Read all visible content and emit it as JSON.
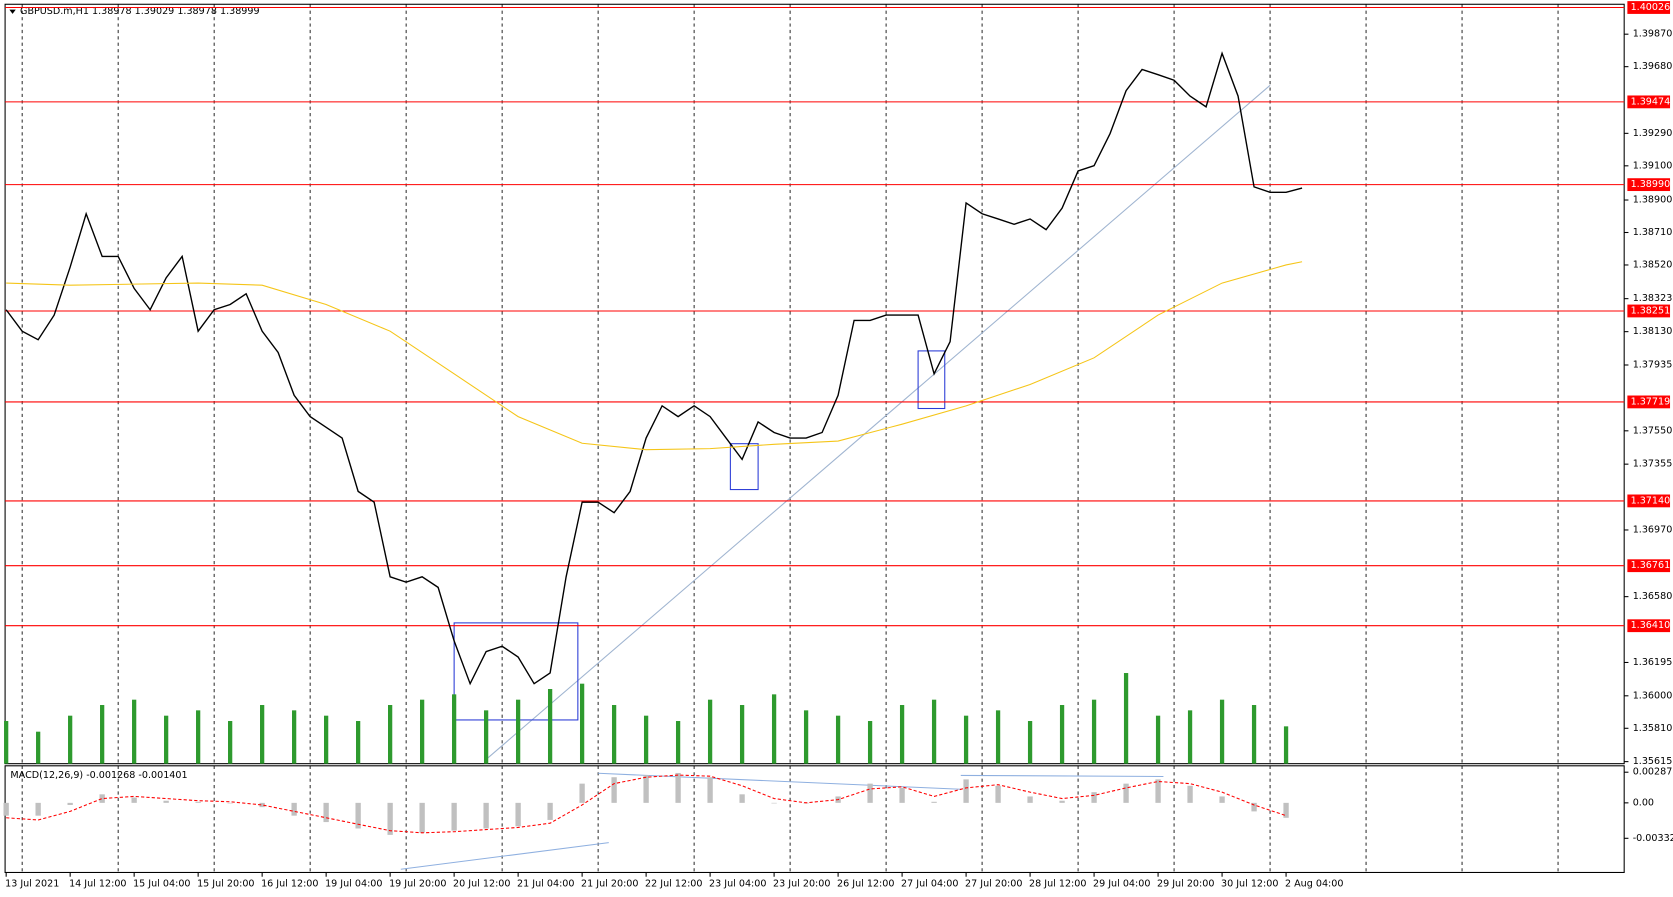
{
  "chart_data": {
    "type": "line",
    "title": "GBPUSD.m,H1  1.38978 1.39029 1.38978 1.38999",
    "xlim": [
      0,
      404
    ],
    "xticks": [
      {
        "value": 0,
        "label": "13 Jul 2021"
      },
      {
        "value": 16,
        "label": "14 Jul 12:00"
      },
      {
        "value": 32,
        "label": "15 Jul 04:00"
      },
      {
        "value": 48,
        "label": "15 Jul 20:00"
      },
      {
        "value": 64,
        "label": "16 Jul 12:00"
      },
      {
        "value": 80,
        "label": "19 Jul 04:00"
      },
      {
        "value": 96,
        "label": "19 Jul 20:00"
      },
      {
        "value": 112,
        "label": "20 Jul 12:00"
      },
      {
        "value": 128,
        "label": "21 Jul 04:00"
      },
      {
        "value": 144,
        "label": "21 Jul 20:00"
      },
      {
        "value": 160,
        "label": "22 Jul 12:00"
      },
      {
        "value": 176,
        "label": "23 Jul 04:00"
      },
      {
        "value": 192,
        "label": "23 Jul 20:00"
      },
      {
        "value": 208,
        "label": "26 Jul 12:00"
      },
      {
        "value": 224,
        "label": "27 Jul 04:00"
      },
      {
        "value": 240,
        "label": "27 Jul 20:00"
      },
      {
        "value": 256,
        "label": "28 Jul 12:00"
      },
      {
        "value": 272,
        "label": "29 Jul 04:00"
      },
      {
        "value": 288,
        "label": "29 Jul 20:00"
      },
      {
        "value": 304,
        "label": "30 Jul 12:00"
      },
      {
        "value": 320,
        "label": "2 Aug 04:00"
      }
    ],
    "ylim": [
      1.35603,
      1.40045
    ],
    "yticks": [
      {
        "value": 1.3987,
        "label": "1.39870"
      },
      {
        "value": 1.3968,
        "label": "1.39680"
      },
      {
        "value": 1.3929,
        "label": "1.39290"
      },
      {
        "value": 1.391,
        "label": "1.39100"
      },
      {
        "value": 1.389,
        "label": "1.38900"
      },
      {
        "value": 1.3871,
        "label": "1.38710"
      },
      {
        "value": 1.3852,
        "label": "1.38520"
      },
      {
        "value": 1.38323,
        "label": "1.38323"
      },
      {
        "value": 1.3813,
        "label": "1.38130"
      },
      {
        "value": 1.37935,
        "label": "1.37935"
      },
      {
        "value": 1.3755,
        "label": "1.37550"
      },
      {
        "value": 1.37355,
        "label": "1.37355"
      },
      {
        "value": 1.3697,
        "label": "1.36970"
      },
      {
        "value": 1.3658,
        "label": "1.36580"
      },
      {
        "value": 1.36195,
        "label": "1.36195"
      },
      {
        "value": 1.36,
        "label": "1.36000"
      },
      {
        "value": 1.3581,
        "label": "1.35810"
      },
      {
        "value": 1.35615,
        "label": "1.35615"
      }
    ],
    "series": [
      {
        "color": "#000000",
        "x": [
          0,
          4,
          8,
          12,
          16,
          20,
          24,
          28,
          32,
          36,
          40,
          44,
          48,
          52,
          56,
          60,
          64,
          68,
          72,
          76,
          80,
          84,
          88,
          92,
          96,
          100,
          104,
          108,
          112,
          116,
          120,
          124,
          128,
          132,
          136,
          140,
          144,
          148,
          152,
          156,
          160,
          164,
          168,
          172,
          176,
          180,
          184,
          188,
          192,
          196,
          200,
          204,
          208,
          212,
          216,
          220,
          224,
          228,
          232,
          236,
          240,
          244,
          248,
          252,
          256,
          260,
          264,
          268,
          272,
          276,
          280,
          284,
          288,
          292,
          296,
          300,
          304,
          308,
          312,
          316,
          320,
          324
        ],
        "values": [
          1.38258,
          1.38133,
          1.38083,
          1.38227,
          1.38508,
          1.3882,
          1.3857,
          1.3857,
          1.38383,
          1.38258,
          1.38445,
          1.3857,
          1.38133,
          1.38258,
          1.38289,
          1.38352,
          1.38133,
          1.38008,
          1.37758,
          1.37633,
          1.37571,
          1.37508,
          1.37196,
          1.37133,
          1.36696,
          1.36665,
          1.36696,
          1.36634,
          1.36321,
          1.36071,
          1.36259,
          1.3629,
          1.36227,
          1.36071,
          1.36134,
          1.36696,
          1.37133,
          1.37133,
          1.37071,
          1.37196,
          1.37508,
          1.37696,
          1.37633,
          1.37696,
          1.37633,
          1.37508,
          1.37383,
          1.37602,
          1.3754,
          1.37508,
          1.37508,
          1.3754,
          1.37758,
          1.38196,
          1.38196,
          1.38227,
          1.38227,
          1.38227,
          1.37883,
          1.38071,
          1.38883,
          1.3882,
          1.38789,
          1.38758,
          1.38789,
          1.38727,
          1.38852,
          1.3907,
          1.39101,
          1.39289,
          1.39539,
          1.39664,
          1.39633,
          1.39601,
          1.39508,
          1.39445,
          1.39758,
          1.39508,
          1.38977,
          1.38945,
          1.38945,
          1.3897
        ]
      },
      {
        "color": "#f5c518",
        "x": [
          0,
          16,
          32,
          48,
          64,
          80,
          96,
          112,
          128,
          144,
          160,
          176,
          192,
          208,
          224,
          240,
          256,
          272,
          288,
          304,
          320,
          324
        ],
        "values": [
          1.38414,
          1.38402,
          1.38408,
          1.38414,
          1.38402,
          1.38289,
          1.38133,
          1.37883,
          1.37633,
          1.37477,
          1.3744,
          1.37446,
          1.37471,
          1.3749,
          1.37589,
          1.37696,
          1.37821,
          1.37977,
          1.38227,
          1.38414,
          1.3852,
          1.38539
        ]
      }
    ],
    "levels": {
      "color": "#ff0000",
      "values": [
        {
          "value": 1.40026,
          "label": "1.40026"
        },
        {
          "value": 1.39474,
          "label": "1.39474"
        },
        {
          "value": 1.3899,
          "label": "1.38990"
        },
        {
          "value": 1.38251,
          "label": "1.38251"
        },
        {
          "value": 1.37719,
          "label": "1.37719"
        },
        {
          "value": 1.3714,
          "label": "1.37140"
        },
        {
          "value": 1.36761,
          "label": "1.36761"
        },
        {
          "value": 1.3641,
          "label": "1.36410"
        }
      ]
    },
    "volume": {
      "color": "#2e9a2e",
      "x": [
        0,
        8,
        16,
        24,
        32,
        40,
        48,
        56,
        64,
        72,
        80,
        88,
        96,
        104,
        112,
        120,
        128,
        136,
        144,
        152,
        160,
        168,
        176,
        184,
        192,
        200,
        208,
        216,
        224,
        232,
        240,
        248,
        256,
        264,
        272,
        280,
        288,
        296,
        304,
        312,
        320
      ],
      "values": [
        40,
        30,
        45,
        55,
        60,
        45,
        50,
        40,
        55,
        50,
        45,
        40,
        55,
        60,
        65,
        50,
        60,
        70,
        75,
        55,
        45,
        40,
        60,
        55,
        65,
        50,
        45,
        40,
        55,
        60,
        45,
        50,
        40,
        55,
        60,
        85,
        45,
        50,
        60,
        55,
        35
      ]
    },
    "macd": {
      "title": "MACD(12,26,9) -0.001268 -0.001401",
      "ylim": [
        -0.00652,
        0.00347
      ],
      "yticks": [
        0.002871,
        {
          "value": 0,
          "label": "0.00"
        },
        -0.00332
      ],
      "x": [
        0,
        8,
        16,
        24,
        32,
        40,
        48,
        56,
        64,
        72,
        80,
        88,
        96,
        104,
        112,
        120,
        128,
        136,
        144,
        152,
        160,
        168,
        176,
        184,
        192,
        200,
        208,
        216,
        224,
        232,
        240,
        248,
        256,
        264,
        272,
        280,
        288,
        296,
        304,
        312,
        320
      ],
      "histogram": {
        "color": "#c0c0c0",
        "values": [
          -0.0012,
          -0.0012,
          -0.0002,
          0.0008,
          0.0005,
          0.0002,
          0.0001,
          0,
          -0.0004,
          -0.0012,
          -0.0018,
          -0.0024,
          -0.003,
          -0.0028,
          -0.0026,
          -0.0024,
          -0.0022,
          -0.0016,
          0.0018,
          0.0024,
          0.0026,
          0.0028,
          0.0024,
          0.0008,
          0,
          0,
          0.0006,
          0.0018,
          0.0014,
          0.0001,
          0.0022,
          0.0016,
          0.0006,
          0.0002,
          0.001,
          0.0018,
          0.0022,
          0.0016,
          0.0006,
          -0.0008,
          -0.0014
        ]
      },
      "signal": {
        "color": "#ff0000",
        "values": [
          -0.0014,
          -0.0016,
          -0.0008,
          0.0004,
          0.0006,
          0.0004,
          0.0002,
          0.0001,
          -0.0002,
          -0.0008,
          -0.0014,
          -0.002,
          -0.0026,
          -0.0028,
          -0.0027,
          -0.0025,
          -0.0023,
          -0.0019,
          -0.0002,
          0.0018,
          0.0024,
          0.0026,
          0.0025,
          0.0016,
          0.0004,
          0,
          0.0003,
          0.0013,
          0.0015,
          0.0006,
          0.0014,
          0.0017,
          0.001,
          0.0004,
          0.0007,
          0.0014,
          0.002,
          0.0018,
          0.001,
          -0.0002,
          -0.0012
        ]
      }
    }
  }
}
